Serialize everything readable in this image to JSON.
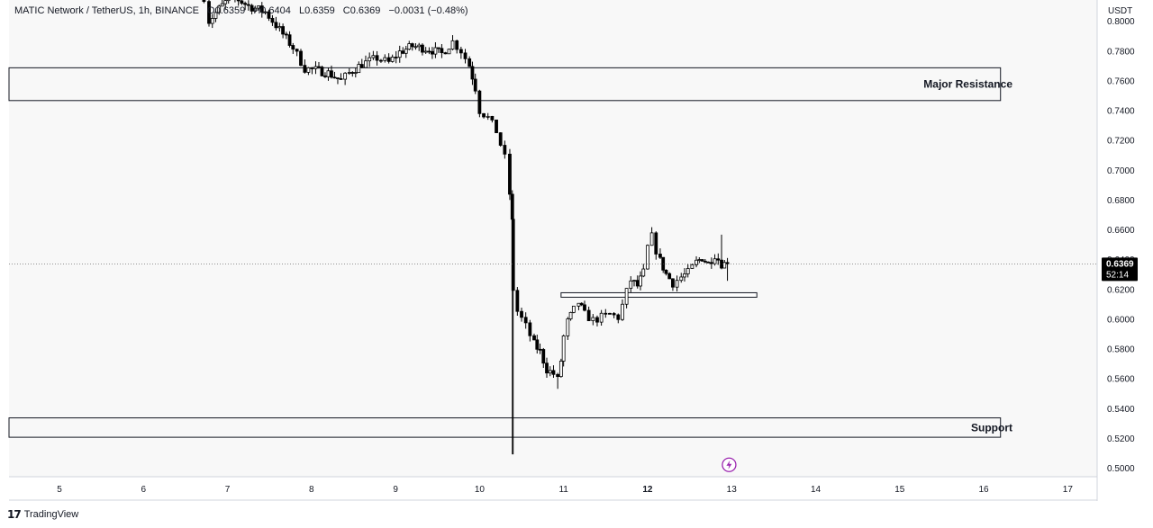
{
  "header": {
    "symbol": "MATIC Network / TetherUS, 1h, BINANCE",
    "open": "O0.6359",
    "high": "H0.6404",
    "low": "L0.6359",
    "close": "C0.6369",
    "change": "−0.0031 (−0.48%)"
  },
  "price_axis": {
    "currency": "USDT",
    "last_price": "0.6369",
    "countdown": "52:14"
  },
  "zones": {
    "resistance_label": "Major Resistance",
    "support_label": "Support"
  },
  "branding": {
    "text": "TradingView"
  },
  "colors": {
    "background": "#ffffff",
    "plot_bg": "#f8f8f8",
    "candle": "#000000",
    "zone_border": "#131722",
    "last_price_bg": "#000000",
    "event_icon": "#9c27b0"
  },
  "icons": {
    "event_marker": "lightning-icon"
  },
  "chart_data": {
    "type": "candlestick",
    "symbol": "MATIC Network / TetherUS",
    "interval": "1h",
    "exchange": "BINANCE",
    "x_ticks": [
      "5",
      "6",
      "7",
      "8",
      "9",
      "10",
      "11",
      "12",
      "13",
      "14",
      "15",
      "16",
      "17"
    ],
    "y_ticks": [
      "0.8000",
      "0.7800",
      "0.7600",
      "0.7400",
      "0.7200",
      "0.7000",
      "0.6800",
      "0.6600",
      "0.6400",
      "0.6200",
      "0.6000",
      "0.5800",
      "0.5600",
      "0.5400",
      "0.5200",
      "0.5000"
    ],
    "ylim": [
      0.494,
      0.814
    ],
    "xlim": [
      4.4,
      17.35
    ],
    "last_price": 0.6369,
    "zones": [
      {
        "name": "Major Resistance",
        "low": 0.7465,
        "high": 0.7685,
        "x_start": 4.4,
        "x_end": 16.2
      },
      {
        "name": "Support",
        "low": 0.5205,
        "high": 0.5335,
        "x_start": 4.4,
        "x_end": 16.2
      },
      {
        "name": "",
        "low": 0.6145,
        "high": 0.6175,
        "x_start": 10.97,
        "x_end": 13.3
      }
    ],
    "event_markers": [
      {
        "x": 12.97,
        "y": 0.502
      }
    ],
    "candles_path": [
      [
        6.72,
        0.816
      ],
      [
        6.78,
        0.8
      ],
      [
        6.9,
        0.808
      ],
      [
        7.05,
        0.817
      ],
      [
        7.25,
        0.81
      ],
      [
        7.45,
        0.806
      ],
      [
        7.62,
        0.794
      ],
      [
        7.78,
        0.782
      ],
      [
        7.92,
        0.768
      ],
      [
        8.05,
        0.767
      ],
      [
        8.2,
        0.765
      ],
      [
        8.35,
        0.76
      ],
      [
        8.45,
        0.765
      ],
      [
        8.6,
        0.771
      ],
      [
        8.78,
        0.775
      ],
      [
        8.92,
        0.772
      ],
      [
        9.05,
        0.779
      ],
      [
        9.2,
        0.783
      ],
      [
        9.4,
        0.781
      ],
      [
        9.55,
        0.778
      ],
      [
        9.68,
        0.786
      ],
      [
        9.78,
        0.78
      ],
      [
        9.88,
        0.77
      ],
      [
        9.95,
        0.755
      ],
      [
        10.0,
        0.74
      ],
      [
        10.1,
        0.735
      ],
      [
        10.2,
        0.726
      ],
      [
        10.3,
        0.708
      ],
      [
        10.36,
        0.684
      ],
      [
        10.39,
        0.665
      ],
      [
        10.4,
        0.62
      ],
      [
        10.45,
        0.605
      ],
      [
        10.55,
        0.595
      ],
      [
        10.65,
        0.583
      ],
      [
        10.72,
        0.578
      ],
      [
        10.8,
        0.566
      ],
      [
        10.88,
        0.563
      ],
      [
        10.93,
        0.559
      ],
      [
        10.97,
        0.572
      ],
      [
        11.0,
        0.588
      ],
      [
        11.05,
        0.598
      ],
      [
        11.12,
        0.606
      ],
      [
        11.18,
        0.611
      ],
      [
        11.25,
        0.603
      ],
      [
        11.35,
        0.599
      ],
      [
        11.45,
        0.601
      ],
      [
        11.55,
        0.603
      ],
      [
        11.65,
        0.601
      ],
      [
        11.7,
        0.609
      ],
      [
        11.75,
        0.618
      ],
      [
        11.8,
        0.626
      ],
      [
        11.88,
        0.622
      ],
      [
        11.95,
        0.631
      ],
      [
        12.0,
        0.648
      ],
      [
        12.05,
        0.655
      ],
      [
        12.1,
        0.646
      ],
      [
        12.15,
        0.639
      ],
      [
        12.22,
        0.63
      ],
      [
        12.3,
        0.624
      ],
      [
        12.4,
        0.628
      ],
      [
        12.48,
        0.631
      ],
      [
        12.58,
        0.638
      ],
      [
        12.65,
        0.641
      ],
      [
        12.72,
        0.637
      ],
      [
        12.8,
        0.643
      ],
      [
        12.88,
        0.637
      ],
      [
        12.95,
        0.6369
      ]
    ]
  }
}
